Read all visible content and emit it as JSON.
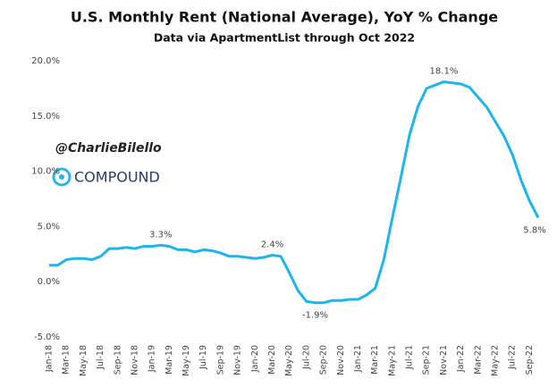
{
  "chart_data": {
    "type": "line",
    "title": "U.S. Monthly Rent (National Average), YoY % Change",
    "subtitle": "Data via ApartmentList through Oct 2022",
    "categories": [
      "Jan-18",
      null,
      "Mar-18",
      null,
      "May-18",
      null,
      "Jul-18",
      null,
      "Sep-18",
      null,
      "Nov-18",
      null,
      "Jan-19",
      null,
      "Mar-19",
      null,
      "May-19",
      null,
      "Jul-19",
      null,
      "Sep-19",
      null,
      "Nov-19",
      null,
      "Jan-20",
      null,
      "Mar-20",
      null,
      "May-20",
      null,
      "Jul-20",
      null,
      "Sep-20",
      null,
      "Nov-20",
      null,
      "Jan-21",
      null,
      "Mar-21",
      null,
      "May-21",
      null,
      "Jul-21",
      null,
      "Sep-21",
      null,
      "Nov-21",
      null,
      "Jan-22",
      null,
      "Mar-22",
      null,
      "May-22",
      null,
      "Jul-22",
      null,
      "Sep-22",
      null
    ],
    "series": [
      {
        "color": "#1fb5ea",
        "values": [
          1.5,
          1.5,
          2.0,
          2.1,
          2.1,
          2.0,
          2.3,
          3.0,
          3.0,
          3.1,
          3.0,
          3.2,
          3.2,
          3.3,
          3.2,
          2.9,
          2.9,
          2.7,
          2.9,
          2.8,
          2.6,
          2.3,
          2.3,
          2.2,
          2.1,
          2.2,
          2.4,
          2.3,
          0.8,
          -0.8,
          -1.8,
          -1.9,
          -1.9,
          -1.7,
          -1.7,
          -1.6,
          -1.6,
          -1.2,
          -0.6,
          2.0,
          5.8,
          9.5,
          13.3,
          15.9,
          17.5,
          17.8,
          18.1,
          18.0,
          17.9,
          17.6,
          16.7,
          15.8,
          14.5,
          13.2,
          11.5,
          9.2,
          7.3,
          5.8
        ],
        "value_labels": [
          null,
          null,
          null,
          null,
          null,
          null,
          null,
          null,
          null,
          null,
          null,
          null,
          null,
          "3.3%",
          null,
          null,
          null,
          null,
          null,
          null,
          null,
          null,
          null,
          null,
          null,
          null,
          "2.4%",
          null,
          null,
          null,
          null,
          "-1.9%",
          null,
          null,
          null,
          null,
          null,
          null,
          null,
          null,
          null,
          null,
          null,
          null,
          null,
          null,
          "18.1%",
          null,
          null,
          null,
          null,
          null,
          null,
          null,
          null,
          null,
          null,
          "5.8%"
        ]
      }
    ],
    "ylim": [
      -5,
      20
    ],
    "yticks": [
      {
        "value": -5,
        "label": "-5.0%"
      },
      {
        "value": 0,
        "label": "0.0%"
      },
      {
        "value": 5,
        "label": "5.0%"
      },
      {
        "value": 10,
        "label": "10.0%"
      },
      {
        "value": 15,
        "label": "15.0%"
      },
      {
        "value": 20,
        "label": "20.0%"
      }
    ],
    "grid": false,
    "watermark": {
      "handle": "@CharlieBilello",
      "brand": "COMPOUND"
    }
  }
}
